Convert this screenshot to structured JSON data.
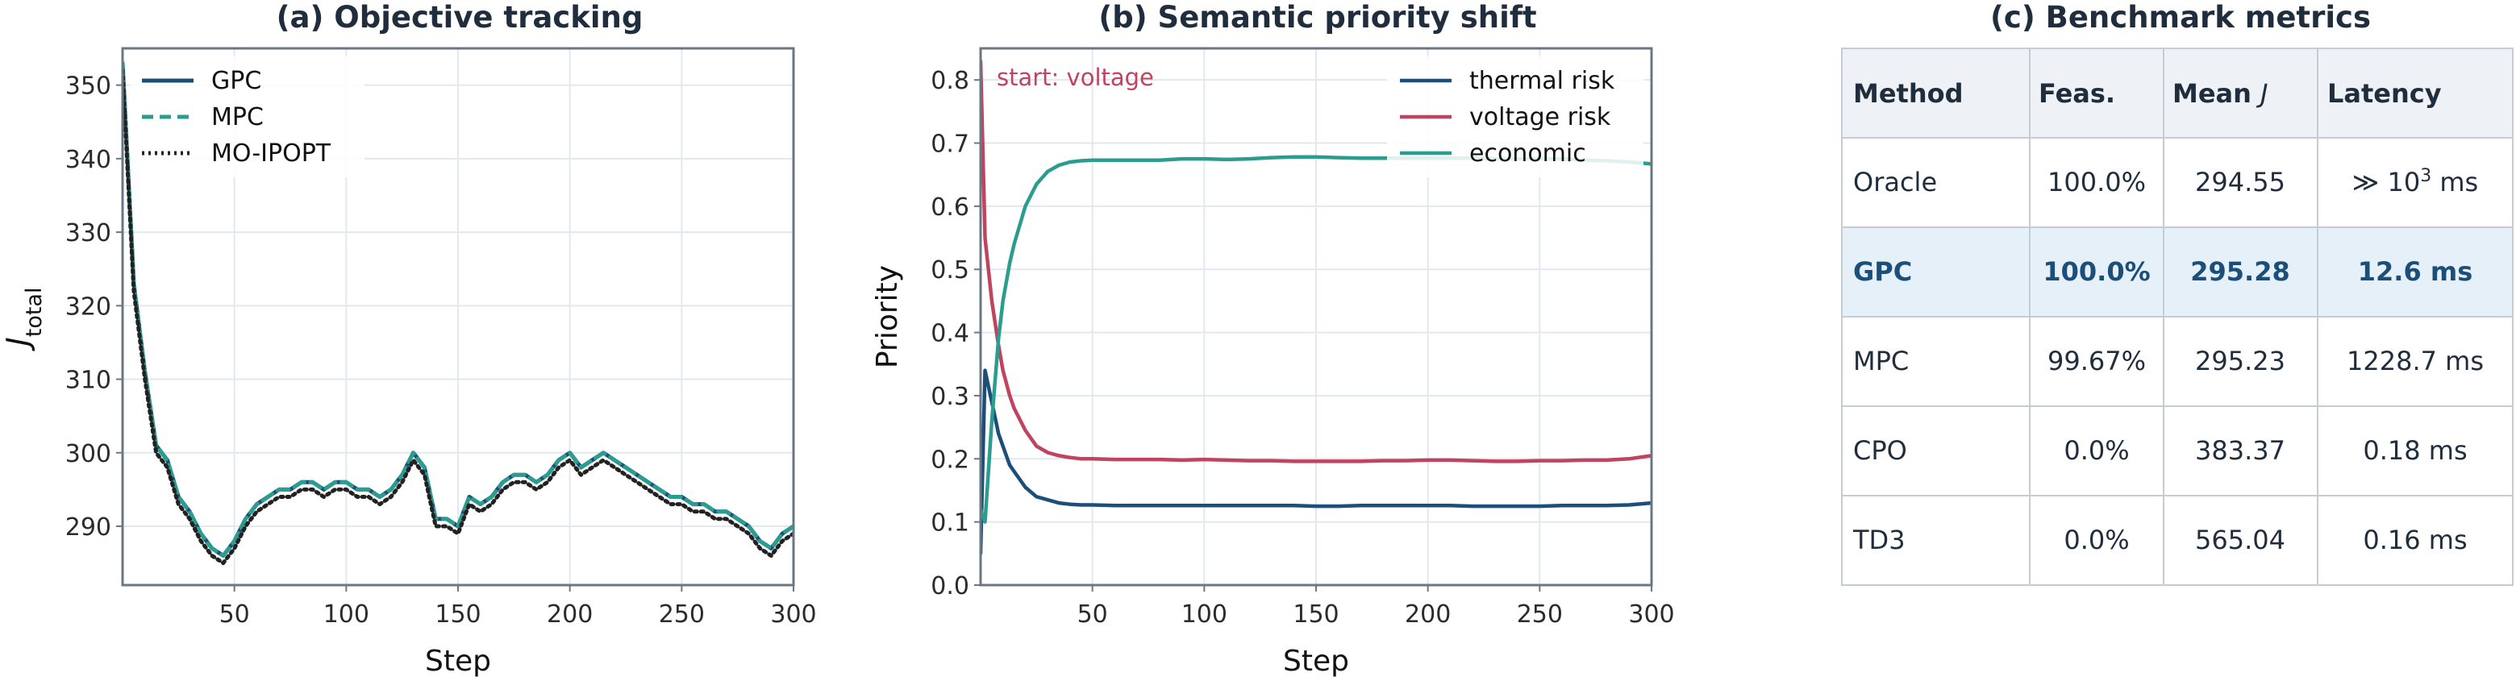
{
  "chart_data": [
    {
      "type": "line",
      "title": "(a) Objective tracking",
      "xlabel": "Step",
      "ylabel": "J_total",
      "ylabel_main": "J",
      "ylabel_sub": "total",
      "xlim": [
        0,
        300
      ],
      "ylim": [
        282,
        355
      ],
      "xticks": [
        50,
        100,
        150,
        200,
        250,
        300
      ],
      "yticks": [
        290,
        300,
        310,
        320,
        330,
        340,
        350
      ],
      "grid": true,
      "legend_position": "top-left",
      "x": [
        0,
        5,
        10,
        15,
        20,
        25,
        30,
        35,
        40,
        45,
        50,
        55,
        60,
        65,
        70,
        75,
        80,
        85,
        90,
        95,
        100,
        105,
        110,
        115,
        120,
        125,
        130,
        135,
        140,
        145,
        150,
        155,
        160,
        165,
        170,
        175,
        180,
        185,
        190,
        195,
        200,
        205,
        210,
        215,
        220,
        225,
        230,
        235,
        240,
        245,
        250,
        255,
        260,
        265,
        270,
        275,
        280,
        285,
        290,
        295,
        300
      ],
      "series": [
        {
          "name": "GPC",
          "color": "#1b4f7a",
          "style": "solid",
          "values": [
            353,
            323,
            311,
            301,
            299,
            294,
            292,
            289,
            287,
            286,
            288,
            291,
            293,
            294,
            295,
            295,
            296,
            296,
            295,
            296,
            296,
            295,
            295,
            294,
            295,
            297,
            300,
            298,
            291,
            291,
            290,
            294,
            293,
            294,
            296,
            297,
            297,
            296,
            297,
            299,
            300,
            298,
            299,
            300,
            299,
            298,
            297,
            296,
            295,
            294,
            294,
            293,
            293,
            292,
            292,
            291,
            290,
            288,
            287,
            289,
            290
          ]
        },
        {
          "name": "MPC",
          "color": "#2a9d8f",
          "style": "dashed",
          "values": [
            353,
            323,
            311,
            301,
            299,
            294,
            292,
            289,
            287,
            286,
            288,
            291,
            293,
            294,
            295,
            295,
            296,
            296,
            295,
            296,
            296,
            295,
            295,
            294,
            295,
            297,
            300,
            298,
            291,
            291,
            290,
            294,
            293,
            294,
            296,
            297,
            297,
            296,
            297,
            299,
            300,
            298,
            299,
            300,
            299,
            298,
            297,
            296,
            295,
            294,
            294,
            293,
            293,
            292,
            292,
            291,
            290,
            288,
            287,
            289,
            290
          ]
        },
        {
          "name": "MO-IPOPT",
          "color": "#222222",
          "style": "dotted",
          "values": [
            352,
            322,
            310,
            300,
            298,
            293,
            291,
            288,
            286,
            285,
            287,
            290,
            292,
            293,
            294,
            294,
            295,
            295,
            294,
            295,
            295,
            294,
            294,
            293,
            294,
            296,
            299,
            297,
            290,
            290,
            289,
            293,
            292,
            293,
            295,
            296,
            296,
            295,
            296,
            298,
            299,
            297,
            298,
            299,
            298,
            297,
            296,
            295,
            294,
            293,
            293,
            292,
            292,
            291,
            291,
            290,
            289,
            287,
            286,
            288,
            289
          ]
        }
      ]
    },
    {
      "type": "line",
      "title": "(b) Semantic priority shift",
      "xlabel": "Step",
      "ylabel": "Priority",
      "xlim": [
        0,
        300
      ],
      "ylim": [
        0.0,
        0.85
      ],
      "xticks": [
        50,
        100,
        150,
        200,
        250,
        300
      ],
      "yticks": [
        0.0,
        0.1,
        0.2,
        0.3,
        0.4,
        0.5,
        0.6,
        0.7,
        0.8
      ],
      "grid": true,
      "legend_position": "top-right",
      "annotation": {
        "text": "start: voltage",
        "color": "#c0435f",
        "position": "top-left"
      },
      "x": [
        0,
        2,
        5,
        8,
        10,
        13,
        15,
        20,
        25,
        30,
        35,
        40,
        45,
        50,
        60,
        70,
        80,
        90,
        100,
        110,
        120,
        130,
        140,
        150,
        160,
        170,
        180,
        190,
        200,
        210,
        220,
        230,
        240,
        250,
        260,
        270,
        280,
        290,
        300
      ],
      "series": [
        {
          "name": "thermal risk",
          "color": "#1b4f7a",
          "values": [
            0.05,
            0.34,
            0.29,
            0.24,
            0.22,
            0.19,
            0.18,
            0.155,
            0.14,
            0.135,
            0.13,
            0.128,
            0.127,
            0.127,
            0.126,
            0.126,
            0.126,
            0.126,
            0.126,
            0.126,
            0.126,
            0.126,
            0.126,
            0.125,
            0.125,
            0.126,
            0.126,
            0.126,
            0.126,
            0.126,
            0.125,
            0.125,
            0.125,
            0.125,
            0.126,
            0.126,
            0.126,
            0.127,
            0.13
          ]
        },
        {
          "name": "voltage risk",
          "color": "#c0435f",
          "values": [
            0.83,
            0.55,
            0.45,
            0.38,
            0.34,
            0.3,
            0.28,
            0.245,
            0.22,
            0.21,
            0.205,
            0.202,
            0.2,
            0.2,
            0.199,
            0.199,
            0.199,
            0.198,
            0.199,
            0.198,
            0.197,
            0.197,
            0.196,
            0.196,
            0.196,
            0.196,
            0.197,
            0.197,
            0.198,
            0.198,
            0.197,
            0.196,
            0.196,
            0.197,
            0.197,
            0.198,
            0.198,
            0.2,
            0.205
          ]
        },
        {
          "name": "economic",
          "color": "#2a9d8f",
          "values": [
            0.12,
            0.1,
            0.26,
            0.39,
            0.45,
            0.51,
            0.54,
            0.6,
            0.635,
            0.655,
            0.665,
            0.67,
            0.672,
            0.673,
            0.673,
            0.673,
            0.673,
            0.675,
            0.675,
            0.674,
            0.675,
            0.677,
            0.678,
            0.678,
            0.677,
            0.676,
            0.676,
            0.676,
            0.676,
            0.676,
            0.676,
            0.675,
            0.675,
            0.675,
            0.675,
            0.673,
            0.672,
            0.67,
            0.667
          ]
        }
      ]
    },
    {
      "type": "table",
      "title": "(c) Benchmark metrics",
      "columns": [
        "Method",
        "Feas.",
        "Mean J",
        "Latency"
      ],
      "header_cells": {
        "method": "Method",
        "feas": "Feas.",
        "mean_prefix": "Mean ",
        "mean_italic": "J",
        "latency": "Latency"
      },
      "highlight_row": "GPC",
      "highlight_color": "#e6f0f8",
      "highlight_text_color": "#1b4f7a",
      "rows": [
        {
          "method": "Oracle",
          "feas": "100.0%",
          "mean": "294.55",
          "latency_prefix": "≫ 10",
          "latency_sup": "3",
          "latency_suffix": " ms"
        },
        {
          "method": "GPC",
          "feas": "100.0%",
          "mean": "295.28",
          "latency_prefix": "12.6 ms",
          "latency_sup": "",
          "latency_suffix": ""
        },
        {
          "method": "MPC",
          "feas": "99.67%",
          "mean": "295.23",
          "latency_prefix": "1228.7 ms",
          "latency_sup": "",
          "latency_suffix": ""
        },
        {
          "method": "CPO",
          "feas": "0.0%",
          "mean": "383.37",
          "latency_prefix": "0.18 ms",
          "latency_sup": "",
          "latency_suffix": ""
        },
        {
          "method": "TD3",
          "feas": "0.0%",
          "mean": "565.04",
          "latency_prefix": "0.16 ms",
          "latency_sup": "",
          "latency_suffix": ""
        }
      ]
    }
  ]
}
